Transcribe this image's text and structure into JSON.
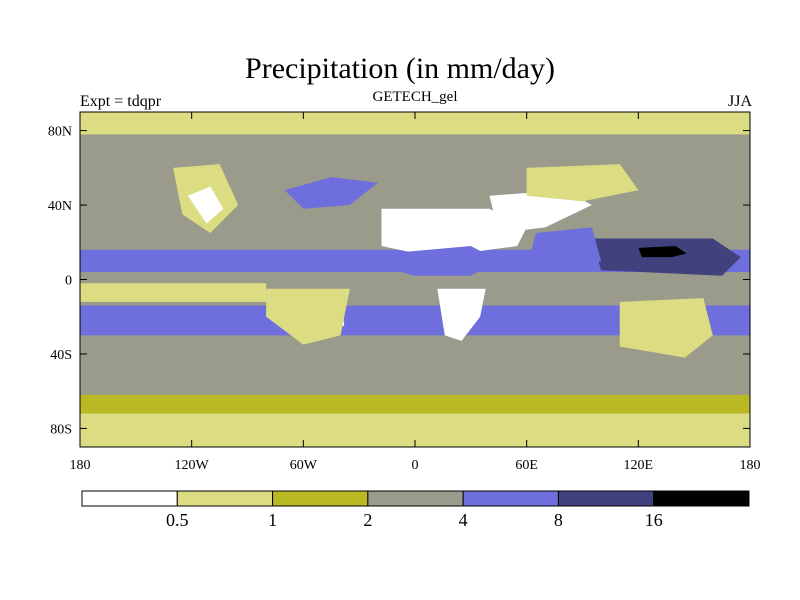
{
  "header": {
    "title": "Precipitation (in mm/day)",
    "subtitle": "GETECH_gel",
    "left_label": "Expt = tdqpr",
    "right_label": "JJA"
  },
  "chart_data": {
    "type": "heatmap",
    "projection": "cylindrical-equidistant",
    "title": "Precipitation (in mm/day)",
    "xlim": [
      -180,
      180
    ],
    "ylim": [
      -90,
      90
    ],
    "x_ticks": [
      {
        "value": -180,
        "label": "180"
      },
      {
        "value": -120,
        "label": "120W"
      },
      {
        "value": -60,
        "label": "60W"
      },
      {
        "value": 0,
        "label": "0"
      },
      {
        "value": 60,
        "label": "60E"
      },
      {
        "value": 120,
        "label": "120E"
      },
      {
        "value": 180,
        "label": "180"
      }
    ],
    "y_ticks": [
      {
        "value": 80,
        "label": "80N"
      },
      {
        "value": 40,
        "label": "40N"
      },
      {
        "value": 0,
        "label": "0"
      },
      {
        "value": -40,
        "label": "40S"
      },
      {
        "value": -80,
        "label": "80S"
      }
    ],
    "levels": [
      0.5,
      1,
      2,
      4,
      8,
      16
    ],
    "level_labels": [
      "0.5",
      "1",
      "2",
      "4",
      "8",
      "16"
    ],
    "colors": [
      "#ffffff",
      "#dcdc82",
      "#b9b923",
      "#9b9b8c",
      "#6e6edc",
      "#41417d",
      "#000000"
    ],
    "background_class": 3,
    "regions": [
      {
        "name": "polar-north",
        "class": 1,
        "points": [
          [
            -180,
            90
          ],
          [
            180,
            90
          ],
          [
            180,
            78
          ],
          [
            -180,
            78
          ]
        ]
      },
      {
        "name": "tropical-atlantic-westpac",
        "class": 4,
        "points": [
          [
            -180,
            16
          ],
          [
            180,
            16
          ],
          [
            180,
            4
          ],
          [
            -180,
            4
          ]
        ]
      },
      {
        "name": "subtropical-pacific-south",
        "class": 1,
        "points": [
          [
            -180,
            -2
          ],
          [
            -80,
            -2
          ],
          [
            -80,
            -12
          ],
          [
            -180,
            -12
          ]
        ]
      },
      {
        "name": "southern-storm-track",
        "class": 4,
        "points": [
          [
            -180,
            -14
          ],
          [
            180,
            -14
          ],
          [
            180,
            -30
          ],
          [
            -180,
            -30
          ]
        ]
      },
      {
        "name": "antarctic-coast",
        "class": 1,
        "points": [
          [
            -180,
            -72
          ],
          [
            180,
            -72
          ],
          [
            180,
            -90
          ],
          [
            -180,
            -90
          ]
        ]
      },
      {
        "name": "antarctic-margin",
        "class": 2,
        "points": [
          [
            -180,
            -62
          ],
          [
            180,
            -62
          ],
          [
            180,
            -72
          ],
          [
            -180,
            -72
          ]
        ]
      },
      {
        "name": "north-america-west",
        "class": 1,
        "points": [
          [
            -130,
            60
          ],
          [
            -105,
            62
          ],
          [
            -95,
            40
          ],
          [
            -110,
            25
          ],
          [
            -125,
            35
          ]
        ]
      },
      {
        "name": "north-america-interior",
        "class": 0,
        "points": [
          [
            -122,
            45
          ],
          [
            -110,
            50
          ],
          [
            -103,
            38
          ],
          [
            -112,
            30
          ]
        ]
      },
      {
        "name": "north-atlantic",
        "class": 4,
        "points": [
          [
            -70,
            48
          ],
          [
            -45,
            55
          ],
          [
            -20,
            52
          ],
          [
            -35,
            40
          ],
          [
            -60,
            38
          ]
        ]
      },
      {
        "name": "sahara",
        "class": 0,
        "points": [
          [
            -18,
            38
          ],
          [
            40,
            38
          ],
          [
            60,
            28
          ],
          [
            55,
            18
          ],
          [
            10,
            12
          ],
          [
            -18,
            18
          ]
        ]
      },
      {
        "name": "arabia-central-asia",
        "class": 0,
        "points": [
          [
            40,
            45
          ],
          [
            80,
            48
          ],
          [
            95,
            40
          ],
          [
            70,
            28
          ],
          [
            45,
            25
          ]
        ]
      },
      {
        "name": "central-asia-yellow",
        "class": 1,
        "points": [
          [
            60,
            60
          ],
          [
            110,
            62
          ],
          [
            120,
            48
          ],
          [
            90,
            42
          ],
          [
            60,
            45
          ]
        ]
      },
      {
        "name": "africa-tropics",
        "class": 4,
        "points": [
          [
            -15,
            14
          ],
          [
            30,
            18
          ],
          [
            45,
            10
          ],
          [
            30,
            2
          ],
          [
            0,
            2
          ],
          [
            -15,
            6
          ]
        ]
      },
      {
        "name": "south-africa",
        "class": 0,
        "points": [
          [
            12,
            -5
          ],
          [
            38,
            -5
          ],
          [
            35,
            -20
          ],
          [
            25,
            -33
          ],
          [
            16,
            -30
          ]
        ]
      },
      {
        "name": "south-america-interior",
        "class": 0,
        "points": [
          [
            -70,
            -8
          ],
          [
            -40,
            -6
          ],
          [
            -38,
            -25
          ],
          [
            -55,
            -22
          ],
          [
            -72,
            -15
          ]
        ]
      },
      {
        "name": "south-america-yellow",
        "class": 1,
        "points": [
          [
            -80,
            -5
          ],
          [
            -35,
            -5
          ],
          [
            -40,
            -30
          ],
          [
            -60,
            -35
          ],
          [
            -80,
            -20
          ]
        ]
      },
      {
        "name": "west-pacific-warm-pool",
        "class": 5,
        "points": [
          [
            95,
            22
          ],
          [
            160,
            22
          ],
          [
            175,
            12
          ],
          [
            165,
            2
          ],
          [
            100,
            5
          ]
        ]
      },
      {
        "name": "west-pacific-core",
        "class": 6,
        "points": [
          [
            120,
            17
          ],
          [
            140,
            18
          ],
          [
            146,
            14
          ],
          [
            138,
            12
          ],
          [
            122,
            12
          ]
        ]
      },
      {
        "name": "indian-monsoon",
        "class": 4,
        "points": [
          [
            65,
            25
          ],
          [
            95,
            28
          ],
          [
            100,
            10
          ],
          [
            80,
            6
          ],
          [
            62,
            14
          ]
        ]
      },
      {
        "name": "australia",
        "class": 0,
        "points": [
          [
            115,
            -18
          ],
          [
            140,
            -14
          ],
          [
            152,
            -25
          ],
          [
            140,
            -37
          ],
          [
            116,
            -33
          ]
        ]
      },
      {
        "name": "australia-yellow",
        "class": 1,
        "points": [
          [
            110,
            -12
          ],
          [
            155,
            -10
          ],
          [
            160,
            -30
          ],
          [
            145,
            -42
          ],
          [
            110,
            -36
          ]
        ]
      }
    ],
    "colorbar": {
      "orientation": "horizontal",
      "labels": [
        "0.5",
        "1",
        "2",
        "4",
        "8",
        "16"
      ]
    }
  }
}
